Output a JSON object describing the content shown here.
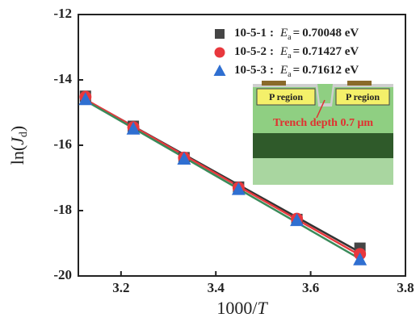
{
  "chart_data": {
    "type": "scatter",
    "x_label": {
      "text": "1000/",
      "italic": "T"
    },
    "y_label": {
      "prefix": "ln(",
      "italic": "J",
      "subscript": "d",
      "suffix": ")"
    },
    "x": [
      3.125,
      3.226,
      3.333,
      3.448,
      3.571,
      3.704
    ],
    "series": [
      {
        "name": "10-5-1",
        "ea": "0.70048 eV",
        "marker": "square",
        "color": "#454545",
        "line_color": "#333333",
        "values": [
          -14.5,
          -15.42,
          -16.38,
          -17.28,
          -18.27,
          -19.15
        ]
      },
      {
        "name": "10-5-2",
        "ea": "0.71427 eV",
        "marker": "circle",
        "color": "#e8383d",
        "line_color": "#e8383d",
        "values": [
          -14.52,
          -15.45,
          -16.38,
          -17.3,
          -18.25,
          -19.33
        ]
      },
      {
        "name": "10-5-3",
        "ea": "0.71612 eV",
        "marker": "triangle",
        "color": "#2f6fd1",
        "line_color": "#3a8a5a",
        "values": [
          -14.6,
          -15.5,
          -16.42,
          -17.35,
          -18.3,
          -19.5
        ]
      }
    ],
    "legend_quantity": {
      "separator": ":",
      "symbol": "E",
      "subscript": "a",
      "equals": "="
    },
    "xlim": [
      3.11,
      3.8
    ],
    "xticks": [
      3.2,
      3.4,
      3.6,
      3.8
    ],
    "ylim": [
      -20,
      -12
    ],
    "yticks": [
      -20,
      -18,
      -16,
      -14,
      -12
    ],
    "inset": {
      "regions": [
        "P region",
        "P region"
      ],
      "annotation": "Trench depth 0.7 μm"
    }
  }
}
